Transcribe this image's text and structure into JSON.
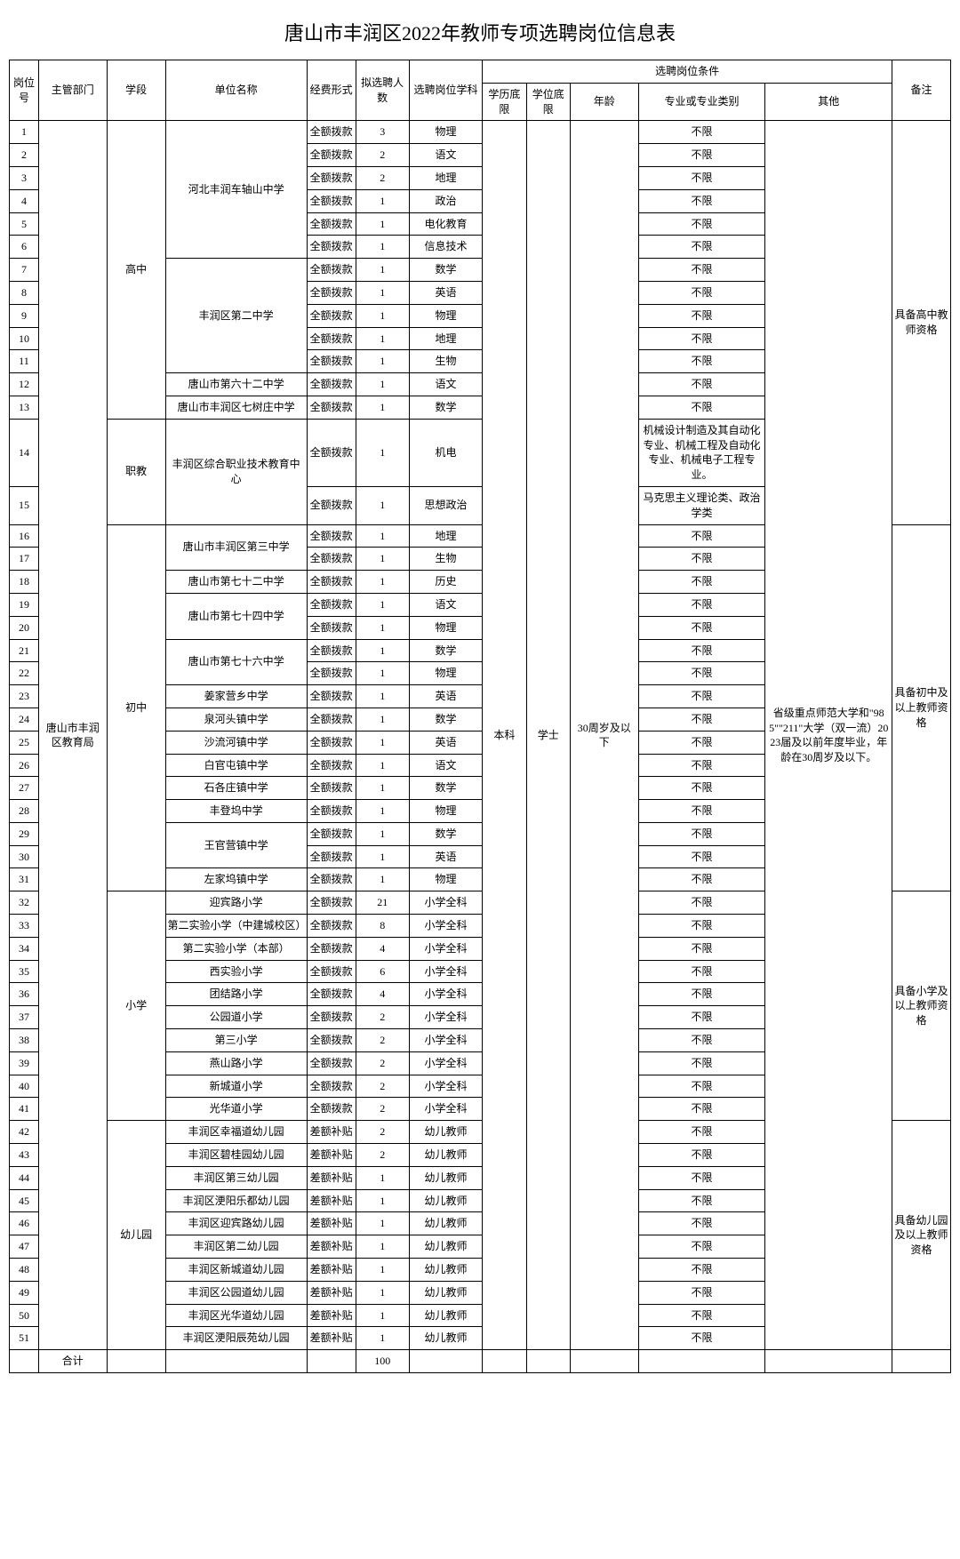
{
  "title": "唐山市丰润区2022年教师专项选聘岗位信息表",
  "headers": {
    "id": "岗位号",
    "dept": "主管部门",
    "stage": "学段",
    "unit": "单位名称",
    "fund": "经费形式",
    "num": "拟选聘人数",
    "subj": "选聘岗位学科",
    "condGroup": "选聘岗位条件",
    "edu": "学历底限",
    "deg": "学位底限",
    "age": "年龄",
    "major": "专业或专业类别",
    "other": "其他",
    "note": "备注"
  },
  "dept": "唐山市丰润区教育局",
  "edu": "本科",
  "deg": "学士",
  "age": "30周岁及以下",
  "other": "省级重点师范大学和\"985\"\"211\"大学（双一流）2023届及以前年度毕业，年龄在30周岁及以下。",
  "stages": {
    "hs": "高中",
    "voc": "职教",
    "ms": "初中",
    "ps": "小学",
    "kg": "幼儿园"
  },
  "units": {
    "u1": "河北丰润车轴山中学",
    "u2": "丰润区第二中学",
    "u3": "唐山市第六十二中学",
    "u4": "唐山市丰润区七树庄中学",
    "u5": "丰润区综合职业技术教育中心",
    "u6": "唐山市丰润区第三中学",
    "u7": "唐山市第七十二中学",
    "u8": "唐山市第七十四中学",
    "u9": "唐山市第七十六中学",
    "u10": "姜家营乡中学",
    "u11": "泉河头镇中学",
    "u12": "沙流河镇中学",
    "u13": "白官屯镇中学",
    "u14": "石各庄镇中学",
    "u15": "丰登坞中学",
    "u16": "王官营镇中学",
    "u17": "左家坞镇中学",
    "u18": "迎宾路小学",
    "u19": "第二实验小学（中建城校区）",
    "u20": "第二实验小学（本部）",
    "u21": "西实验小学",
    "u22": "团结路小学",
    "u23": "公园道小学",
    "u24": "第三小学",
    "u25": "燕山路小学",
    "u26": "新城道小学",
    "u27": "光华道小学",
    "u28": "丰润区幸福道幼儿园",
    "u29": "丰润区碧桂园幼儿园",
    "u30": "丰润区第三幼儿园",
    "u31": "丰润区浭阳乐都幼儿园",
    "u32": "丰润区迎宾路幼儿园",
    "u33": "丰润区第二幼儿园",
    "u34": "丰润区新城道幼儿园",
    "u35": "丰润区公园道幼儿园",
    "u36": "丰润区光华道幼儿园",
    "u37": "丰润区浭阳辰苑幼儿园"
  },
  "fund": {
    "qq": "全额拨款",
    "ce": "差额补贴"
  },
  "majors": {
    "bx": "不限",
    "m14": "机械设计制造及其自动化专业、机械工程及自动化专业、机械电子工程专业。",
    "m15": "马克思主义理论类、政治学类"
  },
  "notes": {
    "n1": "具备高中教师资格",
    "n2": "具备初中及以上教师资格",
    "n3": "具备小学及以上教师资格",
    "n4": "具备幼儿园及以上教师资格"
  },
  "rows": [
    {
      "id": "1",
      "num": "3",
      "subj": "物理"
    },
    {
      "id": "2",
      "num": "2",
      "subj": "语文"
    },
    {
      "id": "3",
      "num": "2",
      "subj": "地理"
    },
    {
      "id": "4",
      "num": "1",
      "subj": "政治"
    },
    {
      "id": "5",
      "num": "1",
      "subj": "电化教育"
    },
    {
      "id": "6",
      "num": "1",
      "subj": "信息技术"
    },
    {
      "id": "7",
      "num": "1",
      "subj": "数学"
    },
    {
      "id": "8",
      "num": "1",
      "subj": "英语"
    },
    {
      "id": "9",
      "num": "1",
      "subj": "物理"
    },
    {
      "id": "10",
      "num": "1",
      "subj": "地理"
    },
    {
      "id": "11",
      "num": "1",
      "subj": "生物"
    },
    {
      "id": "12",
      "num": "1",
      "subj": "语文"
    },
    {
      "id": "13",
      "num": "1",
      "subj": "数学"
    },
    {
      "id": "14",
      "num": "1",
      "subj": "机电"
    },
    {
      "id": "15",
      "num": "1",
      "subj": "思想政治"
    },
    {
      "id": "16",
      "num": "1",
      "subj": "地理"
    },
    {
      "id": "17",
      "num": "1",
      "subj": "生物"
    },
    {
      "id": "18",
      "num": "1",
      "subj": "历史"
    },
    {
      "id": "19",
      "num": "1",
      "subj": "语文"
    },
    {
      "id": "20",
      "num": "1",
      "subj": "物理"
    },
    {
      "id": "21",
      "num": "1",
      "subj": "数学"
    },
    {
      "id": "22",
      "num": "1",
      "subj": "物理"
    },
    {
      "id": "23",
      "num": "1",
      "subj": "英语"
    },
    {
      "id": "24",
      "num": "1",
      "subj": "数学"
    },
    {
      "id": "25",
      "num": "1",
      "subj": "英语"
    },
    {
      "id": "26",
      "num": "1",
      "subj": "语文"
    },
    {
      "id": "27",
      "num": "1",
      "subj": "数学"
    },
    {
      "id": "28",
      "num": "1",
      "subj": "物理"
    },
    {
      "id": "29",
      "num": "1",
      "subj": "数学"
    },
    {
      "id": "30",
      "num": "1",
      "subj": "英语"
    },
    {
      "id": "31",
      "num": "1",
      "subj": "物理"
    },
    {
      "id": "32",
      "num": "21",
      "subj": "小学全科"
    },
    {
      "id": "33",
      "num": "8",
      "subj": "小学全科"
    },
    {
      "id": "34",
      "num": "4",
      "subj": "小学全科"
    },
    {
      "id": "35",
      "num": "6",
      "subj": "小学全科"
    },
    {
      "id": "36",
      "num": "4",
      "subj": "小学全科"
    },
    {
      "id": "37",
      "num": "2",
      "subj": "小学全科"
    },
    {
      "id": "38",
      "num": "2",
      "subj": "小学全科"
    },
    {
      "id": "39",
      "num": "2",
      "subj": "小学全科"
    },
    {
      "id": "40",
      "num": "2",
      "subj": "小学全科"
    },
    {
      "id": "41",
      "num": "2",
      "subj": "小学全科"
    },
    {
      "id": "42",
      "num": "2",
      "subj": "幼儿教师"
    },
    {
      "id": "43",
      "num": "2",
      "subj": "幼儿教师"
    },
    {
      "id": "44",
      "num": "1",
      "subj": "幼儿教师"
    },
    {
      "id": "45",
      "num": "1",
      "subj": "幼儿教师"
    },
    {
      "id": "46",
      "num": "1",
      "subj": "幼儿教师"
    },
    {
      "id": "47",
      "num": "1",
      "subj": "幼儿教师"
    },
    {
      "id": "48",
      "num": "1",
      "subj": "幼儿教师"
    },
    {
      "id": "49",
      "num": "1",
      "subj": "幼儿教师"
    },
    {
      "id": "50",
      "num": "1",
      "subj": "幼儿教师"
    },
    {
      "id": "51",
      "num": "1",
      "subj": "幼儿教师"
    }
  ],
  "total": {
    "label": "合计",
    "sum": "100"
  }
}
